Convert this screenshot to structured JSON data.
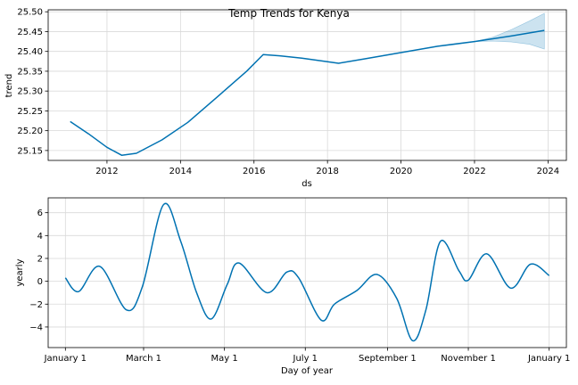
{
  "chart_data": [
    {
      "type": "line",
      "title": "Temp Trends for Kenya",
      "xlabel": "ds",
      "ylabel": "trend",
      "xlim": [
        2010.4,
        2024.5
      ],
      "ylim": [
        25.125,
        25.505
      ],
      "grid": true,
      "x_ticks": [
        2012,
        2014,
        2016,
        2018,
        2020,
        2022,
        2024
      ],
      "x_tick_labels": [
        "2012",
        "2014",
        "2016",
        "2018",
        "2020",
        "2022",
        "2024"
      ],
      "y_ticks": [
        25.15,
        25.2,
        25.25,
        25.3,
        25.35,
        25.4,
        25.45,
        25.5
      ],
      "y_tick_labels": [
        "25.15",
        "25.20",
        "25.25",
        "25.30",
        "25.35",
        "25.40",
        "25.45",
        "25.50"
      ],
      "color": "#0072b2",
      "band_color": "#0072b2",
      "series": [
        {
          "values_x": [
            2011.0,
            2011.5,
            2012.0,
            2012.4,
            2012.8,
            2013.5,
            2014.2,
            2015.0,
            2015.8,
            2016.25,
            2016.7,
            2017.3,
            2018.0,
            2018.3,
            2019.0,
            2020.0,
            2021.0,
            2022.0,
            2022.5,
            2023.0,
            2023.9
          ],
          "values_y": [
            25.223,
            25.192,
            25.158,
            25.138,
            25.143,
            25.177,
            25.221,
            25.285,
            25.35,
            25.392,
            25.389,
            25.383,
            25.374,
            25.37,
            25.381,
            25.397,
            25.413,
            25.425,
            25.432,
            25.439,
            25.453
          ]
        }
      ],
      "uncertainty": {
        "x": [
          2022.0,
          2022.5,
          2023.0,
          2023.5,
          2023.9
        ],
        "upper": [
          25.425,
          25.436,
          25.455,
          25.477,
          25.496
        ],
        "lower": [
          25.425,
          25.426,
          25.424,
          25.418,
          25.406
        ]
      }
    },
    {
      "type": "line",
      "title": "",
      "xlabel": "Day of year",
      "ylabel": "yearly",
      "xlim": [
        -13,
        378
      ],
      "ylim": [
        -5.8,
        7.3
      ],
      "grid": true,
      "x_ticks": [
        0,
        59,
        120,
        181,
        243,
        304,
        365
      ],
      "x_tick_labels": [
        "January 1",
        "March 1",
        "May 1",
        "July 1",
        "September 1",
        "November 1",
        "January 1"
      ],
      "y_ticks": [
        -4,
        -2,
        0,
        2,
        4,
        6
      ],
      "y_tick_labels": [
        "−4",
        "−2",
        "0",
        "2",
        "4",
        "6"
      ],
      "color": "#0072b2",
      "series": [
        {
          "values_x": [
            0,
            10,
            26,
            46,
            58,
            74,
            87,
            99,
            110,
            122,
            131,
            152,
            167,
            176,
            193,
            203,
            220,
            235,
            250,
            262,
            272,
            283,
            297,
            304,
            318,
            336,
            351,
            365
          ],
          "values_y": [
            0.3,
            -0.9,
            1.3,
            -2.5,
            -0.5,
            6.7,
            3.5,
            -1.0,
            -3.3,
            -0.3,
            1.6,
            -1.0,
            0.8,
            0.3,
            -3.4,
            -2.0,
            -0.8,
            0.6,
            -1.5,
            -5.2,
            -2.5,
            3.5,
            0.9,
            0.1,
            2.4,
            -0.6,
            1.5,
            0.5
          ]
        }
      ]
    }
  ]
}
